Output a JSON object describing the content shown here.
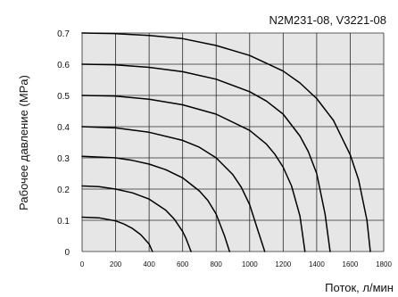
{
  "chart_data": {
    "type": "line",
    "title": "N2M231-08, V3221-08",
    "xlabel": "Поток, л/мин",
    "ylabel": "Рабочее давление (MPa)",
    "xlim": [
      0,
      1800
    ],
    "ylim": [
      0,
      0.7
    ],
    "grid": true,
    "background_color": "#e6e6e6",
    "line_color": "#000000",
    "x_ticks": [
      0,
      200,
      400,
      600,
      800,
      1000,
      1200,
      1400,
      1600,
      1800
    ],
    "x_tick_labels": [
      "0",
      "200",
      "400",
      "600",
      "800",
      "1000",
      "1200",
      "1400",
      "1600",
      "1800"
    ],
    "y_ticks": [
      0,
      0.1,
      0.2,
      0.3,
      0.4,
      0.5,
      0.6,
      0.7
    ],
    "y_tick_labels": [
      "0",
      "0.1",
      "0.2",
      "0.3",
      "0.4",
      "0.5",
      "0.6",
      "0.7"
    ],
    "series": [
      {
        "x": [
          0,
          100,
          200,
          250,
          300,
          350,
          400,
          420
        ],
        "y": [
          0.11,
          0.108,
          0.098,
          0.088,
          0.074,
          0.054,
          0.024,
          0.0
        ]
      },
      {
        "x": [
          0,
          100,
          200,
          300,
          400,
          500,
          550,
          600,
          620,
          650
        ],
        "y": [
          0.21,
          0.208,
          0.2,
          0.188,
          0.168,
          0.132,
          0.104,
          0.064,
          0.042,
          0.0
        ]
      },
      {
        "x": [
          0,
          200,
          300,
          400,
          500,
          600,
          700,
          750,
          800,
          850,
          880
        ],
        "y": [
          0.305,
          0.3,
          0.292,
          0.28,
          0.262,
          0.236,
          0.194,
          0.164,
          0.12,
          0.05,
          0.0
        ]
      },
      {
        "x": [
          0,
          200,
          400,
          600,
          700,
          800,
          900,
          950,
          1000,
          1050,
          1090
        ],
        "y": [
          0.4,
          0.396,
          0.382,
          0.356,
          0.334,
          0.3,
          0.246,
          0.206,
          0.15,
          0.066,
          0.0
        ]
      },
      {
        "x": [
          0,
          200,
          400,
          600,
          800,
          1000,
          1100,
          1150,
          1200,
          1250,
          1300,
          1330
        ],
        "y": [
          0.5,
          0.498,
          0.488,
          0.47,
          0.44,
          0.388,
          0.344,
          0.312,
          0.27,
          0.21,
          0.114,
          0.0
        ]
      },
      {
        "x": [
          0,
          200,
          400,
          600,
          800,
          1000,
          1100,
          1200,
          1300,
          1350,
          1400,
          1450,
          1480
        ],
        "y": [
          0.6,
          0.598,
          0.59,
          0.576,
          0.552,
          0.512,
          0.482,
          0.44,
          0.37,
          0.32,
          0.25,
          0.12,
          0.0
        ]
      },
      {
        "x": [
          0,
          200,
          400,
          600,
          800,
          1000,
          1200,
          1300,
          1400,
          1500,
          1600,
          1650,
          1700,
          1720
        ],
        "y": [
          0.7,
          0.698,
          0.692,
          0.682,
          0.66,
          0.628,
          0.578,
          0.54,
          0.49,
          0.42,
          0.31,
          0.23,
          0.1,
          0.0
        ]
      }
    ]
  }
}
